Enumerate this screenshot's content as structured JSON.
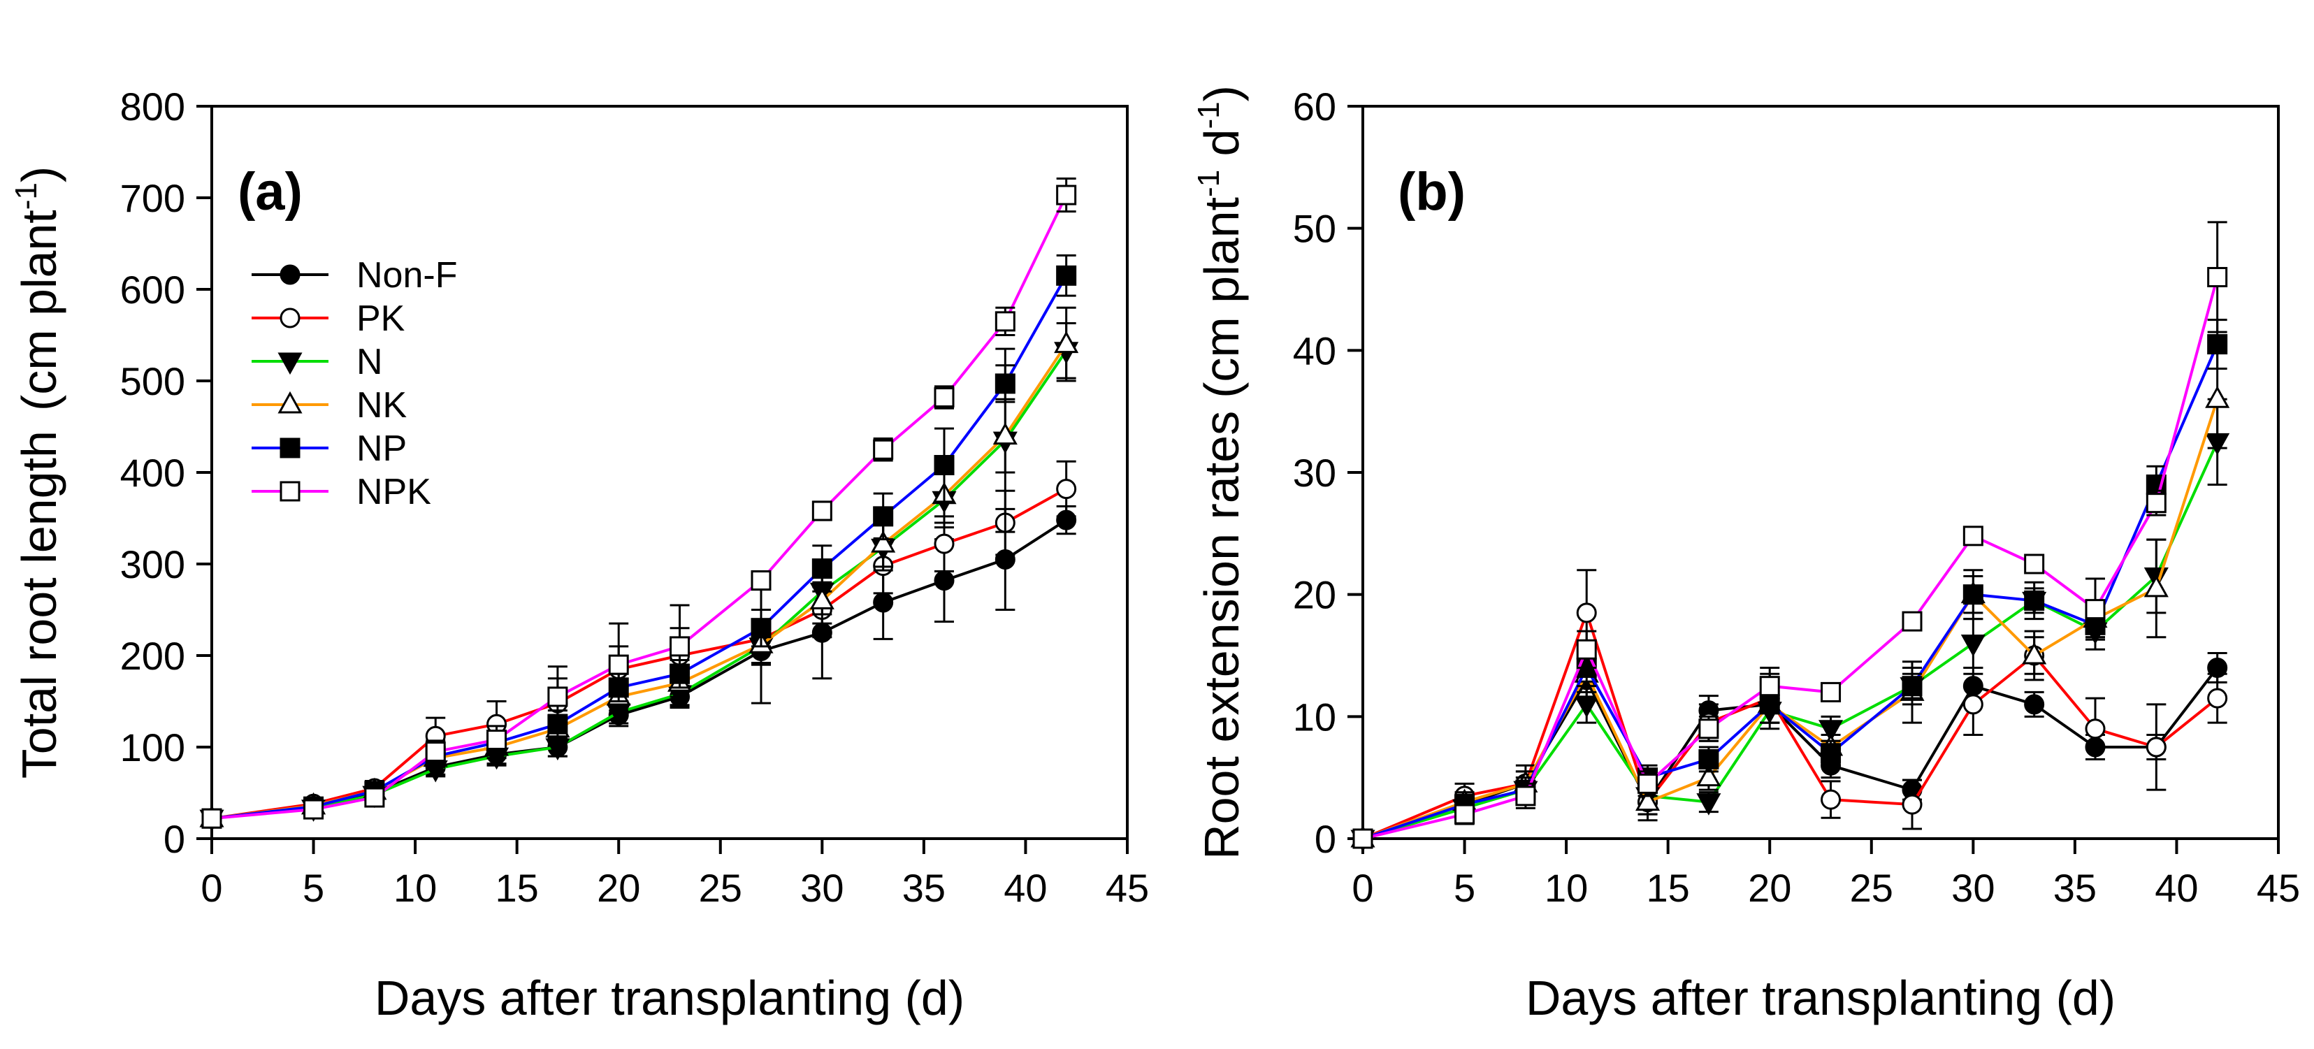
{
  "chart_data": [
    {
      "panel": "(a)",
      "type": "line",
      "xlabel": "Days after transplanting (d)",
      "ylabel": "Total root length",
      "ylabel_units": "(cm plant",
      "ylabel_exp": "-1",
      "ylabel_close": ")",
      "xlim": [
        0,
        45
      ],
      "ylim": [
        0,
        800
      ],
      "xticks": [
        0,
        5,
        10,
        15,
        20,
        25,
        30,
        35,
        40,
        45
      ],
      "yticks": [
        0,
        100,
        200,
        300,
        400,
        500,
        600,
        700,
        800
      ],
      "grid": false,
      "legend_position": "top-left",
      "x": [
        0,
        5,
        8,
        11,
        14,
        17,
        20,
        23,
        27,
        30,
        33,
        36,
        39,
        42
      ],
      "series": [
        {
          "name": "Non-F",
          "color": "#000000",
          "marker": "filled-circle",
          "values": [
            22,
            35,
            50,
            78,
            92,
            100,
            135,
            155,
            205,
            225,
            258,
            282,
            305,
            348
          ],
          "errors": [
            4,
            5,
            6,
            8,
            10,
            10,
            12,
            12,
            15,
            50,
            40,
            45,
            55,
            15
          ]
        },
        {
          "name": "PK",
          "color": "#ff0000",
          "marker": "open-circle",
          "values": [
            22,
            38,
            55,
            112,
            125,
            148,
            185,
            200,
            218,
            250,
            298,
            322,
            345,
            382
          ],
          "errors": [
            4,
            6,
            8,
            20,
            25,
            40,
            50,
            55,
            70,
            30,
            30,
            30,
            35,
            30
          ]
        },
        {
          "name": "N",
          "color": "#00dd00",
          "marker": "filled-triangle-down",
          "values": [
            22,
            33,
            48,
            76,
            90,
            100,
            138,
            158,
            210,
            270,
            318,
            370,
            435,
            533
          ],
          "errors": [
            4,
            5,
            6,
            8,
            10,
            10,
            12,
            12,
            20,
            25,
            25,
            30,
            100,
            30
          ]
        },
        {
          "name": "NK",
          "color": "#ff9900",
          "marker": "open-triangle-up",
          "values": [
            22,
            36,
            52,
            88,
            100,
            120,
            155,
            170,
            212,
            260,
            322,
            375,
            440,
            540
          ],
          "errors": [
            4,
            5,
            6,
            10,
            12,
            15,
            15,
            15,
            20,
            25,
            25,
            30,
            40,
            40
          ]
        },
        {
          "name": "NP",
          "color": "#0000ff",
          "marker": "filled-square",
          "values": [
            22,
            35,
            52,
            90,
            105,
            125,
            165,
            180,
            230,
            295,
            352,
            408,
            497,
            615
          ],
          "errors": [
            4,
            5,
            6,
            10,
            12,
            15,
            15,
            15,
            20,
            25,
            25,
            40,
            20,
            22
          ]
        },
        {
          "name": "NPK",
          "color": "#ff00ff",
          "marker": "open-square",
          "values": [
            22,
            32,
            45,
            95,
            108,
            155,
            190,
            210,
            282,
            358,
            425,
            482,
            565,
            703
          ],
          "errors": [
            4,
            5,
            6,
            12,
            15,
            20,
            20,
            20,
            10,
            10,
            12,
            12,
            15,
            18
          ]
        }
      ]
    },
    {
      "panel": "(b)",
      "type": "line",
      "xlabel": "Days after transplanting (d)",
      "ylabel": "Root extension rates",
      "ylabel_units": "(cm plant",
      "ylabel_exp1": "-1",
      "ylabel_mid": " d",
      "ylabel_exp2": "-1",
      "ylabel_close": ")",
      "xlim": [
        0,
        45
      ],
      "ylim": [
        0,
        60
      ],
      "xticks": [
        0,
        5,
        10,
        15,
        20,
        25,
        30,
        35,
        40,
        45
      ],
      "yticks": [
        0,
        10,
        20,
        30,
        40,
        50,
        60
      ],
      "grid": false,
      "x": [
        0,
        5,
        8,
        11,
        14,
        17,
        20,
        23,
        27,
        30,
        33,
        36,
        39,
        42
      ],
      "series": [
        {
          "name": "Non-F",
          "color": "#000000",
          "marker": "filled-circle",
          "values": [
            0,
            2.8,
            4.5,
            13.0,
            3.0,
            10.5,
            11.0,
            6.0,
            4.0,
            12.5,
            11.0,
            7.5,
            7.5,
            14.0
          ],
          "errors": [
            0,
            0.8,
            1.0,
            1.5,
            1.0,
            1.2,
            1.5,
            1.0,
            0.8,
            1.5,
            1.0,
            1.0,
            1.0,
            1.2
          ]
        },
        {
          "name": "PK",
          "color": "#ff0000",
          "marker": "open-circle",
          "values": [
            0,
            3.5,
            4.5,
            18.5,
            3.0,
            9.5,
            11.5,
            3.2,
            2.8,
            11.0,
            15.0,
            9.0,
            7.5,
            11.5
          ],
          "errors": [
            0,
            1.0,
            1.5,
            3.5,
            1.5,
            1.5,
            2.0,
            1.5,
            2.0,
            2.5,
            1.5,
            2.5,
            3.5,
            2.0
          ]
        },
        {
          "name": "N",
          "color": "#00dd00",
          "marker": "filled-triangle-down",
          "values": [
            0,
            2.5,
            4.0,
            11.0,
            3.5,
            3.0,
            10.5,
            9.0,
            12.5,
            16.0,
            19.5,
            17.0,
            21.5,
            32.5
          ],
          "errors": [
            0,
            0.8,
            1.0,
            1.5,
            1.0,
            0.8,
            1.5,
            1.0,
            1.5,
            2.0,
            1.5,
            1.5,
            3.0,
            3.5
          ]
        },
        {
          "name": "NK",
          "color": "#ff9900",
          "marker": "open-triangle-up",
          "values": [
            0,
            3.0,
            4.5,
            13.5,
            3.0,
            5.0,
            11.0,
            7.5,
            12.0,
            20.0,
            15.0,
            18.0,
            20.5,
            36.0
          ],
          "errors": [
            0,
            0.8,
            1.0,
            1.5,
            1.0,
            1.0,
            1.5,
            1.0,
            2.5,
            2.0,
            2.0,
            1.5,
            4.0,
            4.0
          ]
        },
        {
          "name": "NP",
          "color": "#0000ff",
          "marker": "filled-square",
          "values": [
            0,
            2.8,
            4.0,
            14.0,
            5.0,
            6.5,
            11.0,
            7.0,
            12.5,
            20.0,
            19.5,
            17.5,
            29.0,
            40.5
          ],
          "errors": [
            0,
            0.8,
            1.0,
            1.5,
            1.0,
            1.0,
            1.5,
            1.0,
            1.0,
            1.5,
            1.0,
            1.0,
            1.5,
            2.0
          ]
        },
        {
          "name": "NPK",
          "color": "#ff00ff",
          "marker": "open-square",
          "values": [
            0,
            2.0,
            3.5,
            15.5,
            4.5,
            9.0,
            12.5,
            12.0,
            17.8,
            24.8,
            22.5,
            18.8,
            27.5,
            46.0
          ],
          "errors": [
            0,
            0.8,
            1.0,
            1.5,
            1.0,
            1.0,
            1.5,
            0.5,
            0.5,
            0.5,
            0.5,
            2.5,
            1.0,
            4.5
          ]
        }
      ]
    }
  ]
}
